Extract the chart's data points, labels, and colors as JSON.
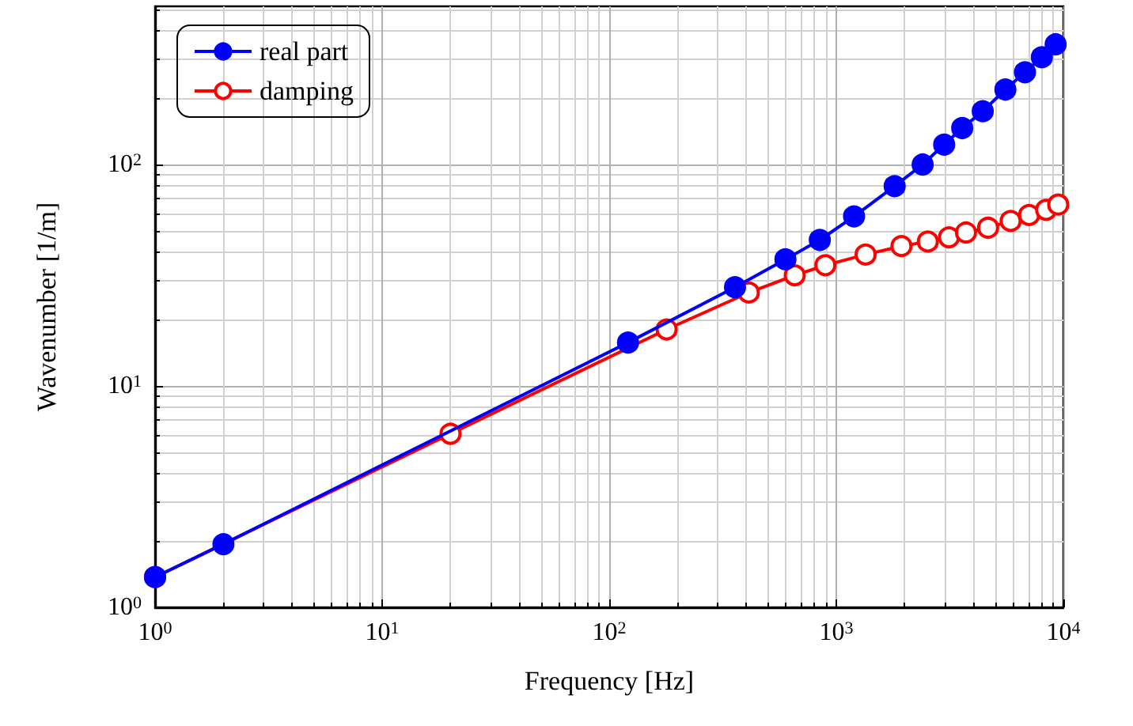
{
  "chart_data": {
    "type": "line",
    "xlabel": "Frequency [Hz]",
    "ylabel": "Wavenumber [1/m]",
    "log": "xy",
    "grid": true,
    "legend": "top left",
    "line_style": "solid",
    "xlim": [
      1,
      10000
    ],
    "ylim": [
      1,
      518
    ],
    "xticks": [
      {
        "value": 1,
        "label": "10$^{0}$"
      },
      {
        "value": 10,
        "label": "10$^{1}$"
      },
      {
        "value": 100,
        "label": "10$^{2}$"
      },
      {
        "value": 1000,
        "label": "10$^{3}$"
      },
      {
        "value": 10000,
        "label": "10$^{4}$"
      }
    ],
    "yticks": [
      {
        "value": 1,
        "label": "10$^{0}$"
      },
      {
        "value": 10,
        "label": "10$^{1}$"
      },
      {
        "value": 100,
        "label": "10$^{2}$"
      }
    ],
    "series": [
      {
        "name": "real part",
        "color": "#0000ff",
        "marker": "circle",
        "x": [
          1,
          2,
          121,
          358,
          597,
          846,
          1197,
          1807,
          2400,
          2985,
          3585,
          4415,
          5555,
          6775,
          8040,
          9245
        ],
        "values": [
          1.37,
          1.93,
          15.7,
          27.9,
          37.3,
          45.6,
          58.3,
          79.8,
          100,
          123,
          146,
          174,
          218,
          261,
          305,
          349
        ]
      },
      {
        "name": "damping",
        "color": "#ff0000",
        "marker": "circle_open",
        "x": [
          1,
          20,
          179,
          412,
          656,
          895,
          1346,
          1936,
          2530,
          3135,
          3725,
          4660,
          5860,
          7065,
          8395,
          9490
        ],
        "values": [
          1.37,
          6.08,
          18.0,
          26.4,
          31.6,
          35.1,
          39.2,
          42.8,
          44.9,
          46.9,
          49.3,
          51.8,
          55.6,
          59.1,
          62.4,
          65.9
        ]
      }
    ]
  }
}
